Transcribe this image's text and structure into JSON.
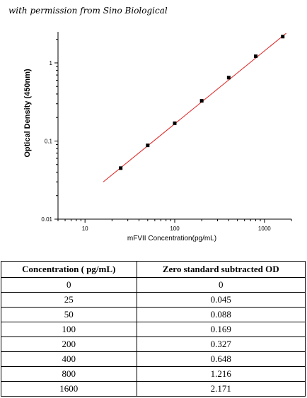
{
  "credit": "with permission from Sino Biological",
  "chart_data": {
    "type": "scatter",
    "xscale": "log",
    "yscale": "log",
    "xlabel": "mFVII  Concentration(pg/mL)",
    "ylabel": "Optical Density (450nm)",
    "xlim": [
      5,
      2000
    ],
    "ylim": [
      0.01,
      2.5
    ],
    "x_ticks": [
      {
        "value": 10,
        "label": "10"
      },
      {
        "value": 100,
        "label": "100"
      },
      {
        "value": 1000,
        "label": "1000"
      }
    ],
    "y_ticks": [
      {
        "value": 0.01,
        "label": "0.01"
      },
      {
        "value": 0.1,
        "label": "0.1"
      },
      {
        "value": 1,
        "label": "1"
      }
    ],
    "grid": false,
    "x": [
      25,
      50,
      100,
      200,
      400,
      800,
      1600
    ],
    "y": [
      0.045,
      0.088,
      0.169,
      0.327,
      0.648,
      1.216,
      2.171
    ],
    "fit_line": {
      "x": [
        16,
        1750
      ],
      "y": [
        0.03,
        2.4
      ]
    },
    "point_color": "#000000",
    "line_color": "#e02020"
  },
  "table": {
    "headers": [
      "Concentration ( pg/mL)",
      "Zero standard subtracted OD"
    ],
    "rows": [
      [
        "0",
        "0"
      ],
      [
        "25",
        "0.045"
      ],
      [
        "50",
        "0.088"
      ],
      [
        "100",
        "0.169"
      ],
      [
        "200",
        "0.327"
      ],
      [
        "400",
        "0.648"
      ],
      [
        "800",
        "1.216"
      ],
      [
        "1600",
        "2.171"
      ]
    ]
  }
}
